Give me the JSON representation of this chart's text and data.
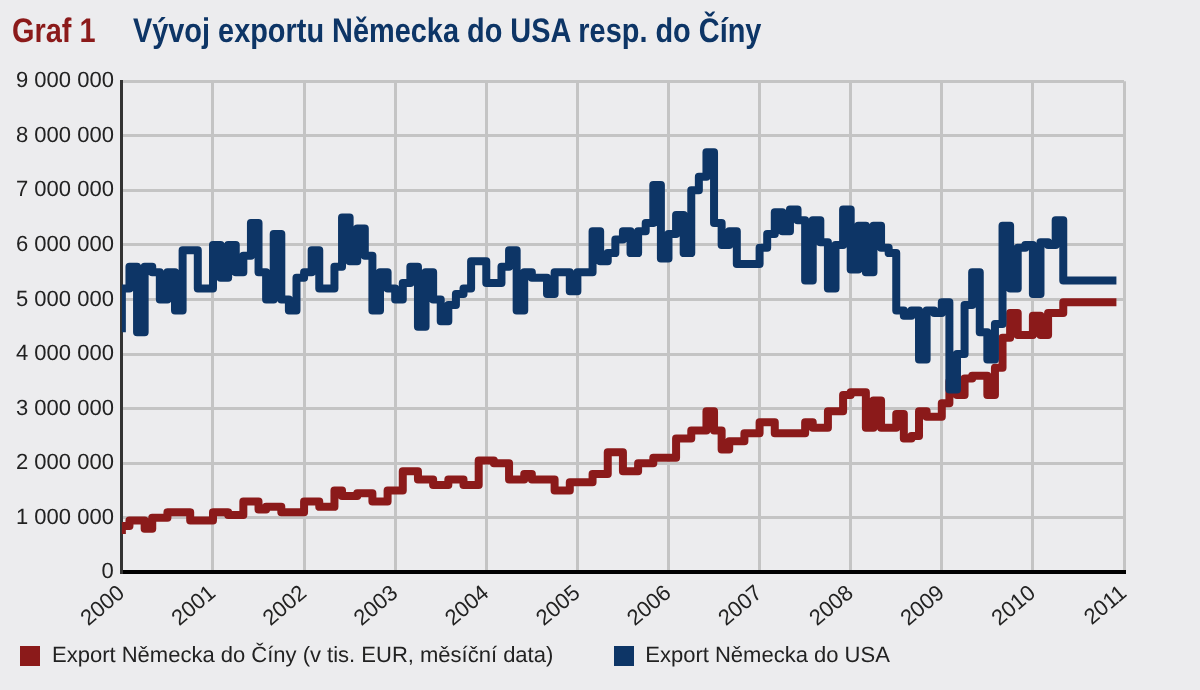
{
  "chart_data": {
    "type": "step",
    "title": "Vývoj exportu Německa do USA resp. do Číny",
    "annotations": [
      "Graf 1"
    ],
    "xlim": [
      "2000",
      "2011"
    ],
    "xticks": [
      "2000",
      "2001",
      "2002",
      "2003",
      "2004",
      "2005",
      "2006",
      "2007",
      "2008",
      "2009",
      "2010",
      "2011"
    ],
    "ylim": [
      0,
      9000000
    ],
    "yticks": [
      0,
      {
        "value": 1000000,
        "label": "1 000 000"
      },
      {
        "value": 2000000,
        "label": "2 000 000"
      },
      {
        "value": 3000000,
        "label": "3 000 000"
      },
      {
        "value": 4000000,
        "label": "4 000 000"
      },
      {
        "value": 5000000,
        "label": "5 000 000"
      },
      {
        "value": 6000000,
        "label": "6 000 000"
      },
      {
        "value": 7000000,
        "label": "7 000 000"
      },
      {
        "value": 8000000,
        "label": "8 000 000"
      },
      {
        "value": 9000000,
        "label": "9 000 000"
      }
    ],
    "grid": true,
    "legend": "bottom left",
    "marker": "none",
    "line_style": "solid",
    "series": [
      {
        "name": "Export Německa do Číny (v tis. EUR, měsíční data)",
        "color": "#8b1a1a",
        "x": [
          "2000-01",
          "2000-02",
          "2000-04",
          "2000-05",
          "2000-07",
          "2000-10",
          "2001-01",
          "2001-03",
          "2001-05",
          "2001-07",
          "2001-08",
          "2001-10",
          "2002-01",
          "2002-03",
          "2002-05",
          "2002-06",
          "2002-08",
          "2002-10",
          "2002-12",
          "2003-02",
          "2003-04",
          "2003-06",
          "2003-08",
          "2003-10",
          "2003-12",
          "2004-02",
          "2004-04",
          "2004-06",
          "2004-07",
          "2004-10",
          "2004-12",
          "2005-03",
          "2005-05",
          "2005-07",
          "2005-09",
          "2005-11",
          "2006-02",
          "2006-04",
          "2006-06",
          "2006-07",
          "2006-08",
          "2006-09",
          "2006-11",
          "2007-01",
          "2007-03",
          "2007-07",
          "2007-08",
          "2007-10",
          "2007-12",
          "2008-01",
          "2008-03",
          "2008-04",
          "2008-05",
          "2008-07",
          "2008-08",
          "2008-09",
          "2008-10",
          "2008-11",
          "2009-01",
          "2009-02",
          "2009-03",
          "2009-04",
          "2009-05",
          "2009-07",
          "2009-08",
          "2009-09",
          "2009-10",
          "2009-11",
          "2010-01",
          "2010-02",
          "2010-03",
          "2010-05",
          "2010-06",
          "2010-12"
        ],
        "values": [
          700000,
          850000,
          950000,
          800000,
          1000000,
          1100000,
          950000,
          1100000,
          1050000,
          1300000,
          1150000,
          1200000,
          1100000,
          1300000,
          1200000,
          1500000,
          1400000,
          1450000,
          1300000,
          1500000,
          1850000,
          1700000,
          1600000,
          1700000,
          1600000,
          2050000,
          2000000,
          1700000,
          1800000,
          1700000,
          1500000,
          1650000,
          1800000,
          2200000,
          1850000,
          2000000,
          2100000,
          2450000,
          2600000,
          2950000,
          2600000,
          2250000,
          2400000,
          2550000,
          2750000,
          2550000,
          2750000,
          2650000,
          2950000,
          3250000,
          3300000,
          2650000,
          3150000,
          2650000,
          2900000,
          2450000,
          2500000,
          2950000,
          2850000,
          3100000,
          3500000,
          3250000,
          3550000,
          3600000,
          3250000,
          3750000,
          4300000,
          4750000,
          4350000,
          4700000,
          4350000,
          4750000,
          4950000,
          4950000
        ]
      },
      {
        "name": "Export Německa do USA",
        "color": "#0d3566",
        "x": [
          "2000-01",
          "2000-02",
          "2000-03",
          "2000-04",
          "2000-05",
          "2000-06",
          "2000-07",
          "2000-08",
          "2000-09",
          "2000-11",
          "2001-01",
          "2001-02",
          "2001-03",
          "2001-04",
          "2001-05",
          "2001-06",
          "2001-07",
          "2001-08",
          "2001-09",
          "2001-10",
          "2001-11",
          "2001-12",
          "2002-01",
          "2002-02",
          "2002-03",
          "2002-05",
          "2002-06",
          "2002-07",
          "2002-08",
          "2002-09",
          "2002-10",
          "2002-11",
          "2002-12",
          "2003-01",
          "2003-02",
          "2003-03",
          "2003-04",
          "2003-05",
          "2003-06",
          "2003-07",
          "2003-08",
          "2003-09",
          "2003-10",
          "2003-11",
          "2004-01",
          "2004-03",
          "2004-04",
          "2004-05",
          "2004-06",
          "2004-07",
          "2004-09",
          "2004-10",
          "2004-12",
          "2005-01",
          "2005-03",
          "2005-04",
          "2005-05",
          "2005-06",
          "2005-07",
          "2005-08",
          "2005-09",
          "2005-10",
          "2005-11",
          "2005-12",
          "2006-01",
          "2006-02",
          "2006-03",
          "2006-04",
          "2006-05",
          "2006-06",
          "2006-07",
          "2006-08",
          "2006-09",
          "2006-10",
          "2007-01",
          "2007-02",
          "2007-03",
          "2007-04",
          "2007-05",
          "2007-06",
          "2007-07",
          "2007-08",
          "2007-09",
          "2007-10",
          "2007-11",
          "2007-12",
          "2008-01",
          "2008-02",
          "2008-03",
          "2008-04",
          "2008-05",
          "2008-06",
          "2008-07",
          "2008-08",
          "2008-09",
          "2008-10",
          "2008-11",
          "2008-12",
          "2009-01",
          "2009-02",
          "2009-03",
          "2009-04",
          "2009-05",
          "2009-06",
          "2009-07",
          "2009-08",
          "2009-09",
          "2009-10",
          "2009-11",
          "2009-12",
          "2010-01",
          "2010-02",
          "2010-03",
          "2010-04",
          "2010-05",
          "2010-06",
          "2010-12"
        ],
        "values": [
          4400000,
          5200000,
          5600000,
          4400000,
          5600000,
          5500000,
          5000000,
          5500000,
          4800000,
          5900000,
          5200000,
          6000000,
          5400000,
          6000000,
          5500000,
          5800000,
          6400000,
          5500000,
          5000000,
          6200000,
          5000000,
          4800000,
          5400000,
          5500000,
          5900000,
          5200000,
          5600000,
          6500000,
          5700000,
          6300000,
          5800000,
          4800000,
          5500000,
          5200000,
          5000000,
          5300000,
          5600000,
          4500000,
          5500000,
          5000000,
          4600000,
          4900000,
          5100000,
          5200000,
          5700000,
          5300000,
          5600000,
          5900000,
          4800000,
          5500000,
          5400000,
          5100000,
          5500000,
          5150000,
          5500000,
          6250000,
          5700000,
          5850000,
          6100000,
          6250000,
          5850000,
          6250000,
          6400000,
          7100000,
          5750000,
          6200000,
          6550000,
          5850000,
          7000000,
          7250000,
          7700000,
          6400000,
          6000000,
          6250000,
          5650000,
          5950000,
          6200000,
          6600000,
          6250000,
          6650000,
          6450000,
          5350000,
          6450000,
          6050000,
          5200000,
          6000000,
          6650000,
          5550000,
          6350000,
          5500000,
          6350000,
          5950000,
          5850000,
          4800000,
          4700000,
          4800000,
          3900000,
          4800000,
          4750000,
          4950000,
          3350000,
          4000000,
          4900000,
          5500000,
          4400000,
          3900000,
          4550000,
          6350000,
          5200000,
          5950000,
          6000000,
          5100000,
          6050000,
          6000000,
          6450000,
          5350000,
          5350000
        ]
      }
    ]
  }
}
